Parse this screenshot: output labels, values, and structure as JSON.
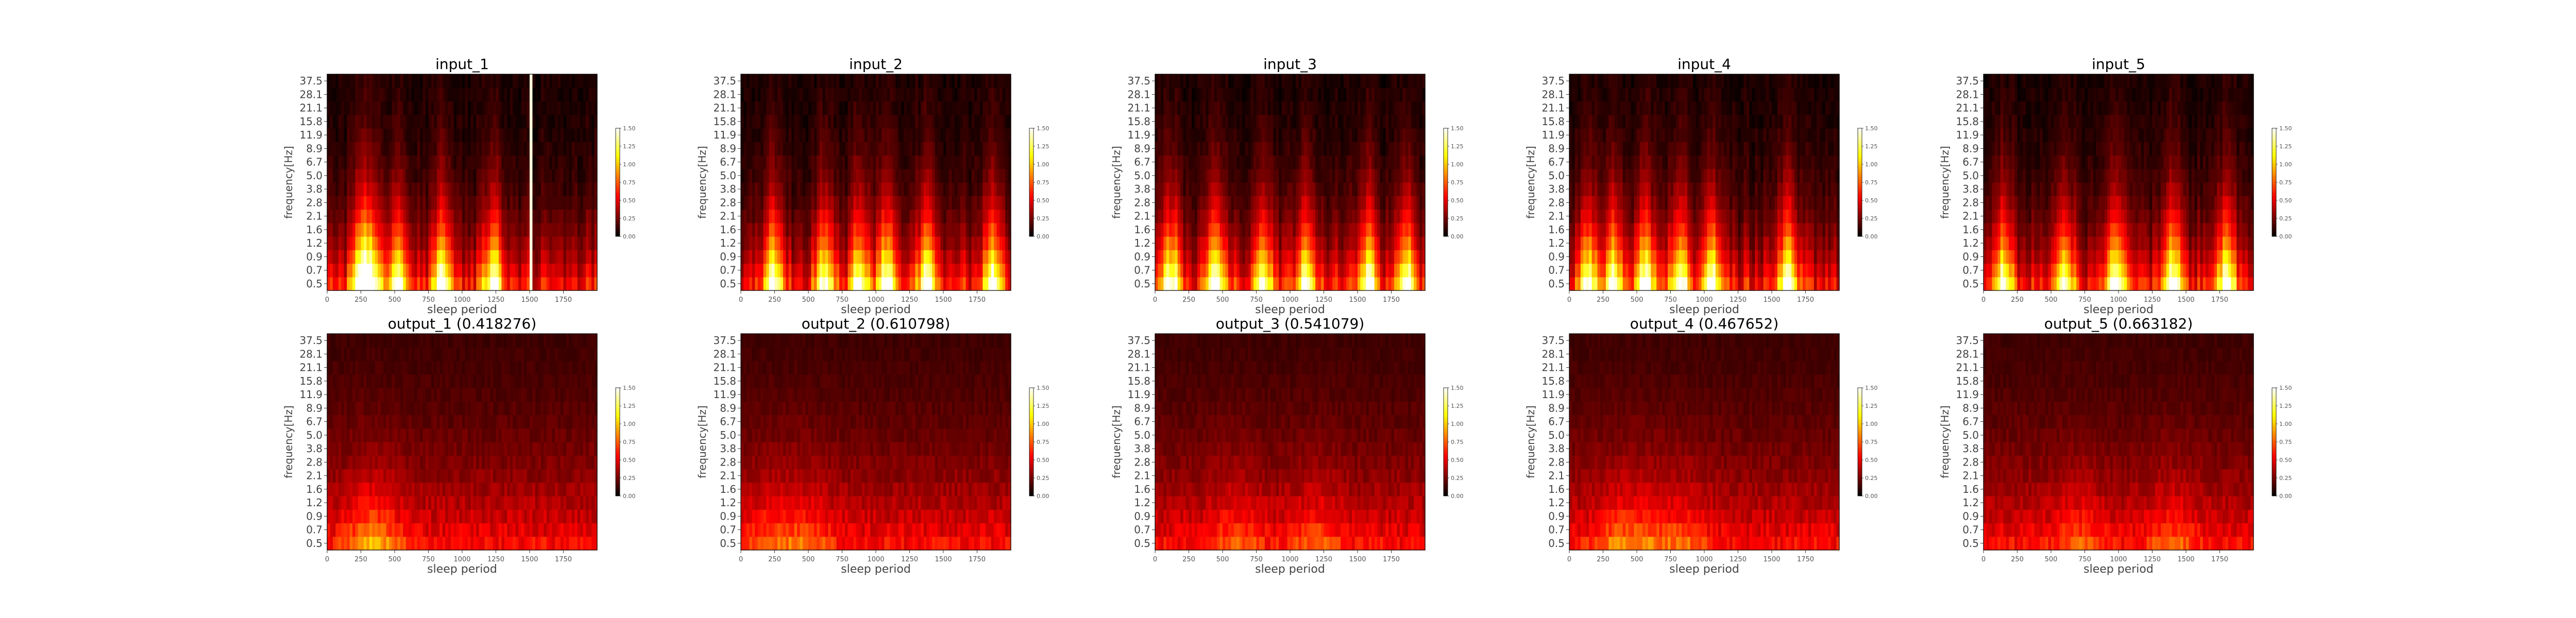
{
  "chart_data": {
    "type": "heatmap",
    "colormap": "hot",
    "colorbar_ticks": [
      "0.00",
      "0.25",
      "0.50",
      "0.75",
      "1.00",
      "1.25",
      "1.50"
    ],
    "vrange": [
      0,
      1.5
    ],
    "xlabel": "sleep period",
    "ylabel": "frequency[Hz]",
    "xticks": [
      "0",
      "250",
      "500",
      "750",
      "1000",
      "1250",
      "1500",
      "1750"
    ],
    "xlim": [
      0,
      2000
    ],
    "yticks": [
      "0.5",
      "0.7",
      "0.9",
      "1.2",
      "1.6",
      "2.1",
      "2.8",
      "3.8",
      "5.0",
      "6.7",
      "8.9",
      "11.9",
      "15.8",
      "21.1",
      "28.1",
      "37.5"
    ],
    "panels": [
      {
        "title": "input_1",
        "kind": "input",
        "bright_times": [
          250,
          330,
          520,
          850,
          1230
        ],
        "line_time": 1510
      },
      {
        "title": "input_2",
        "kind": "input",
        "bright_times": [
          240,
          620,
          880,
          1080,
          1380,
          1870
        ]
      },
      {
        "title": "input_3",
        "kind": "input",
        "bright_times": [
          120,
          450,
          800,
          1120,
          1580,
          1860
        ]
      },
      {
        "title": "input_4",
        "kind": "input",
        "bright_times": [
          140,
          330,
          560,
          820,
          1050,
          1620
        ]
      },
      {
        "title": "input_5",
        "kind": "input",
        "bright_times": [
          150,
          600,
          980,
          1400,
          1800
        ]
      },
      {
        "title": "output_1 (0.418276)",
        "kind": "output",
        "bright_times": [
          280,
          400
        ]
      },
      {
        "title": "output_2 (0.610798)",
        "kind": "output",
        "bright_times": [
          230,
          500
        ]
      },
      {
        "title": "output_3 (0.541079)",
        "kind": "output",
        "bright_times": [
          600,
          1200
        ]
      },
      {
        "title": "output_4 (0.467652)",
        "kind": "output",
        "bright_times": [
          330,
          550,
          850
        ]
      },
      {
        "title": "output_5 (0.663182)",
        "kind": "output",
        "bright_times": [
          700,
          1400
        ]
      }
    ]
  }
}
